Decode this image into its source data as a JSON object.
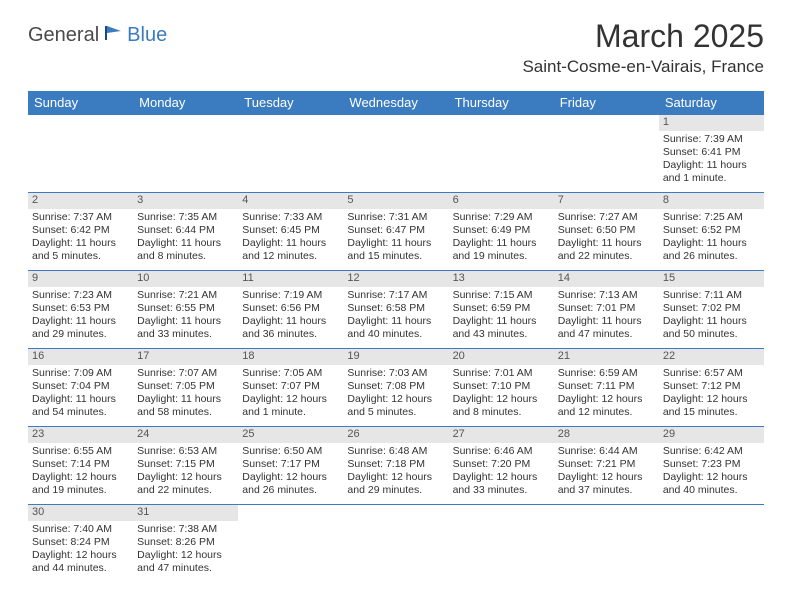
{
  "logo": {
    "text1": "General",
    "text2": "Blue"
  },
  "title": "March 2025",
  "location": "Saint-Cosme-en-Vairais, France",
  "colors": {
    "header_bg": "#3b7bbf",
    "header_text": "#ffffff",
    "daynum_bg": "#e6e6e6",
    "border": "#3b7bbf",
    "text": "#333333"
  },
  "weekdays": [
    "Sunday",
    "Monday",
    "Tuesday",
    "Wednesday",
    "Thursday",
    "Friday",
    "Saturday"
  ],
  "weeks": [
    [
      {
        "day": "",
        "lines": [
          "",
          "",
          "",
          ""
        ]
      },
      {
        "day": "",
        "lines": [
          "",
          "",
          "",
          ""
        ]
      },
      {
        "day": "",
        "lines": [
          "",
          "",
          "",
          ""
        ]
      },
      {
        "day": "",
        "lines": [
          "",
          "",
          "",
          ""
        ]
      },
      {
        "day": "",
        "lines": [
          "",
          "",
          "",
          ""
        ]
      },
      {
        "day": "",
        "lines": [
          "",
          "",
          "",
          ""
        ]
      },
      {
        "day": "1",
        "lines": [
          "Sunrise: 7:39 AM",
          "Sunset: 6:41 PM",
          "Daylight: 11 hours",
          "and 1 minute."
        ]
      }
    ],
    [
      {
        "day": "2",
        "lines": [
          "Sunrise: 7:37 AM",
          "Sunset: 6:42 PM",
          "Daylight: 11 hours",
          "and 5 minutes."
        ]
      },
      {
        "day": "3",
        "lines": [
          "Sunrise: 7:35 AM",
          "Sunset: 6:44 PM",
          "Daylight: 11 hours",
          "and 8 minutes."
        ]
      },
      {
        "day": "4",
        "lines": [
          "Sunrise: 7:33 AM",
          "Sunset: 6:45 PM",
          "Daylight: 11 hours",
          "and 12 minutes."
        ]
      },
      {
        "day": "5",
        "lines": [
          "Sunrise: 7:31 AM",
          "Sunset: 6:47 PM",
          "Daylight: 11 hours",
          "and 15 minutes."
        ]
      },
      {
        "day": "6",
        "lines": [
          "Sunrise: 7:29 AM",
          "Sunset: 6:49 PM",
          "Daylight: 11 hours",
          "and 19 minutes."
        ]
      },
      {
        "day": "7",
        "lines": [
          "Sunrise: 7:27 AM",
          "Sunset: 6:50 PM",
          "Daylight: 11 hours",
          "and 22 minutes."
        ]
      },
      {
        "day": "8",
        "lines": [
          "Sunrise: 7:25 AM",
          "Sunset: 6:52 PM",
          "Daylight: 11 hours",
          "and 26 minutes."
        ]
      }
    ],
    [
      {
        "day": "9",
        "lines": [
          "Sunrise: 7:23 AM",
          "Sunset: 6:53 PM",
          "Daylight: 11 hours",
          "and 29 minutes."
        ]
      },
      {
        "day": "10",
        "lines": [
          "Sunrise: 7:21 AM",
          "Sunset: 6:55 PM",
          "Daylight: 11 hours",
          "and 33 minutes."
        ]
      },
      {
        "day": "11",
        "lines": [
          "Sunrise: 7:19 AM",
          "Sunset: 6:56 PM",
          "Daylight: 11 hours",
          "and 36 minutes."
        ]
      },
      {
        "day": "12",
        "lines": [
          "Sunrise: 7:17 AM",
          "Sunset: 6:58 PM",
          "Daylight: 11 hours",
          "and 40 minutes."
        ]
      },
      {
        "day": "13",
        "lines": [
          "Sunrise: 7:15 AM",
          "Sunset: 6:59 PM",
          "Daylight: 11 hours",
          "and 43 minutes."
        ]
      },
      {
        "day": "14",
        "lines": [
          "Sunrise: 7:13 AM",
          "Sunset: 7:01 PM",
          "Daylight: 11 hours",
          "and 47 minutes."
        ]
      },
      {
        "day": "15",
        "lines": [
          "Sunrise: 7:11 AM",
          "Sunset: 7:02 PM",
          "Daylight: 11 hours",
          "and 50 minutes."
        ]
      }
    ],
    [
      {
        "day": "16",
        "lines": [
          "Sunrise: 7:09 AM",
          "Sunset: 7:04 PM",
          "Daylight: 11 hours",
          "and 54 minutes."
        ]
      },
      {
        "day": "17",
        "lines": [
          "Sunrise: 7:07 AM",
          "Sunset: 7:05 PM",
          "Daylight: 11 hours",
          "and 58 minutes."
        ]
      },
      {
        "day": "18",
        "lines": [
          "Sunrise: 7:05 AM",
          "Sunset: 7:07 PM",
          "Daylight: 12 hours",
          "and 1 minute."
        ]
      },
      {
        "day": "19",
        "lines": [
          "Sunrise: 7:03 AM",
          "Sunset: 7:08 PM",
          "Daylight: 12 hours",
          "and 5 minutes."
        ]
      },
      {
        "day": "20",
        "lines": [
          "Sunrise: 7:01 AM",
          "Sunset: 7:10 PM",
          "Daylight: 12 hours",
          "and 8 minutes."
        ]
      },
      {
        "day": "21",
        "lines": [
          "Sunrise: 6:59 AM",
          "Sunset: 7:11 PM",
          "Daylight: 12 hours",
          "and 12 minutes."
        ]
      },
      {
        "day": "22",
        "lines": [
          "Sunrise: 6:57 AM",
          "Sunset: 7:12 PM",
          "Daylight: 12 hours",
          "and 15 minutes."
        ]
      }
    ],
    [
      {
        "day": "23",
        "lines": [
          "Sunrise: 6:55 AM",
          "Sunset: 7:14 PM",
          "Daylight: 12 hours",
          "and 19 minutes."
        ]
      },
      {
        "day": "24",
        "lines": [
          "Sunrise: 6:53 AM",
          "Sunset: 7:15 PM",
          "Daylight: 12 hours",
          "and 22 minutes."
        ]
      },
      {
        "day": "25",
        "lines": [
          "Sunrise: 6:50 AM",
          "Sunset: 7:17 PM",
          "Daylight: 12 hours",
          "and 26 minutes."
        ]
      },
      {
        "day": "26",
        "lines": [
          "Sunrise: 6:48 AM",
          "Sunset: 7:18 PM",
          "Daylight: 12 hours",
          "and 29 minutes."
        ]
      },
      {
        "day": "27",
        "lines": [
          "Sunrise: 6:46 AM",
          "Sunset: 7:20 PM",
          "Daylight: 12 hours",
          "and 33 minutes."
        ]
      },
      {
        "day": "28",
        "lines": [
          "Sunrise: 6:44 AM",
          "Sunset: 7:21 PM",
          "Daylight: 12 hours",
          "and 37 minutes."
        ]
      },
      {
        "day": "29",
        "lines": [
          "Sunrise: 6:42 AM",
          "Sunset: 7:23 PM",
          "Daylight: 12 hours",
          "and 40 minutes."
        ]
      }
    ],
    [
      {
        "day": "30",
        "lines": [
          "Sunrise: 7:40 AM",
          "Sunset: 8:24 PM",
          "Daylight: 12 hours",
          "and 44 minutes."
        ]
      },
      {
        "day": "31",
        "lines": [
          "Sunrise: 7:38 AM",
          "Sunset: 8:26 PM",
          "Daylight: 12 hours",
          "and 47 minutes."
        ]
      },
      {
        "day": "",
        "lines": [
          "",
          "",
          "",
          ""
        ]
      },
      {
        "day": "",
        "lines": [
          "",
          "",
          "",
          ""
        ]
      },
      {
        "day": "",
        "lines": [
          "",
          "",
          "",
          ""
        ]
      },
      {
        "day": "",
        "lines": [
          "",
          "",
          "",
          ""
        ]
      },
      {
        "day": "",
        "lines": [
          "",
          "",
          "",
          ""
        ]
      }
    ]
  ]
}
